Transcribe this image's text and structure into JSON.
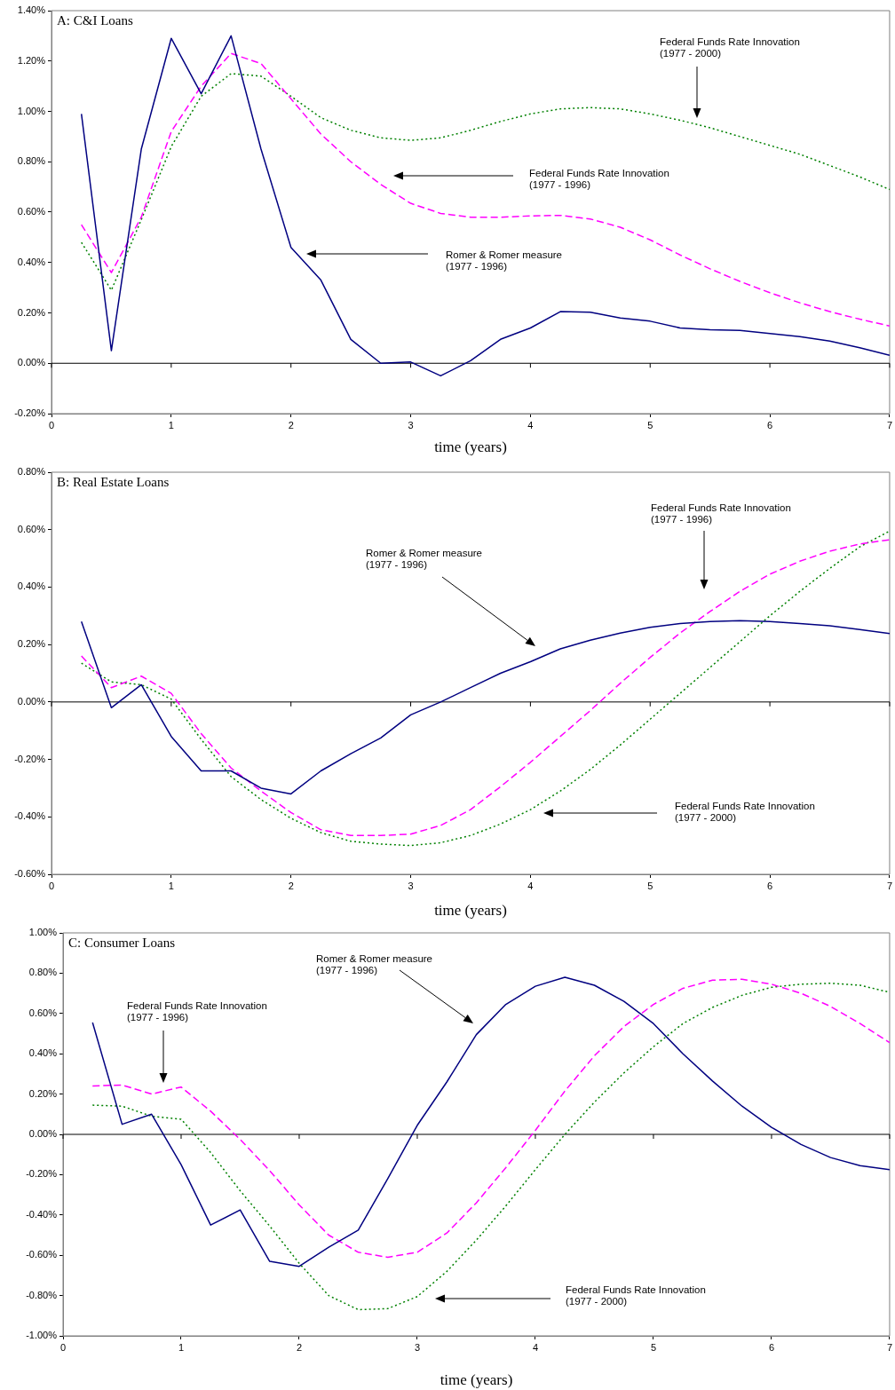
{
  "chart_data": [
    {
      "type": "line",
      "title": "A: C&I Loans",
      "xlabel": "time (years)",
      "marker": "none",
      "xlim": [
        0,
        7
      ],
      "xticks": [
        0,
        1,
        2,
        3,
        4,
        5,
        6,
        7
      ],
      "ylim": [
        -0.2,
        1.4
      ],
      "yticks": [
        {
          "value": -0.2,
          "label": "-0.20%"
        },
        {
          "value": 0,
          "label": "0.00%"
        },
        {
          "value": 0.2,
          "label": "0.20%"
        },
        {
          "value": 0.4,
          "label": "0.40%"
        },
        {
          "value": 0.6,
          "label": "0.60%"
        },
        {
          "value": 0.8,
          "label": "0.80%"
        },
        {
          "value": 1.0,
          "label": "1.00%"
        },
        {
          "value": 1.2,
          "label": "1.20%"
        },
        {
          "value": 1.4,
          "label": "1.40%"
        }
      ],
      "x": [
        0.25,
        0.5,
        0.75,
        1,
        1.25,
        1.5,
        1.75,
        2,
        2.25,
        2.5,
        2.75,
        3,
        3.25,
        3.5,
        3.75,
        4,
        4.25,
        4.5,
        4.75,
        5,
        5.25,
        5.5,
        5.75,
        6,
        6.25,
        6.5,
        6.75,
        7
      ],
      "series": [
        {
          "color": "#000080",
          "line_style": "solid",
          "values": [
            0.99,
            0.05,
            0.85,
            1.29,
            1.07,
            1.3,
            0.85,
            0.46,
            0.33,
            0.095,
            0.0,
            0.005,
            -0.05,
            0.01,
            0.095,
            0.14,
            0.205,
            0.203,
            0.18,
            0.167,
            0.14,
            0.133,
            0.13,
            0.118,
            0.106,
            0.088,
            0.062,
            0.032
          ]
        },
        {
          "color": "#ff00ff",
          "line_style": "dashed",
          "values": [
            0.55,
            0.36,
            0.58,
            0.92,
            1.1,
            1.23,
            1.19,
            1.05,
            0.91,
            0.8,
            0.71,
            0.635,
            0.595,
            0.58,
            0.58,
            0.585,
            0.587,
            0.573,
            0.54,
            0.49,
            0.43,
            0.375,
            0.325,
            0.28,
            0.24,
            0.205,
            0.175,
            0.148
          ]
        },
        {
          "color": "#008000",
          "line_style": "dotted",
          "values": [
            0.48,
            0.29,
            0.57,
            0.86,
            1.06,
            1.15,
            1.14,
            1.06,
            0.975,
            0.925,
            0.895,
            0.885,
            0.895,
            0.925,
            0.96,
            0.99,
            1.01,
            1.015,
            1.01,
            0.99,
            0.965,
            0.935,
            0.9,
            0.865,
            0.83,
            0.785,
            0.74,
            0.69
          ]
        }
      ],
      "ref_lines": [
        {
          "axis": "y",
          "value": 0,
          "color": "#000000"
        }
      ],
      "annotations": [
        "Federal Funds Rate Innovation\n(1977 - 2000)",
        "Federal Funds Rate Innovation\n(1977 - 1996)",
        "Romer & Romer measure\n(1977 - 1996)"
      ]
    },
    {
      "type": "line",
      "title": "B: Real Estate Loans",
      "xlabel": "time (years)",
      "marker": "none",
      "xlim": [
        0,
        7
      ],
      "xticks": [
        0,
        1,
        2,
        3,
        4,
        5,
        6,
        7
      ],
      "ylim": [
        -0.6,
        0.8
      ],
      "yticks": [
        {
          "value": -0.6,
          "label": "-0.60%"
        },
        {
          "value": -0.4,
          "label": "-0.40%"
        },
        {
          "value": -0.2,
          "label": "-0.20%"
        },
        {
          "value": 0,
          "label": "0.00%"
        },
        {
          "value": 0.2,
          "label": "0.20%"
        },
        {
          "value": 0.4,
          "label": "0.40%"
        },
        {
          "value": 0.6,
          "label": "0.60%"
        },
        {
          "value": 0.8,
          "label": "0.80%"
        }
      ],
      "x": [
        0.25,
        0.5,
        0.75,
        1,
        1.25,
        1.5,
        1.75,
        2,
        2.25,
        2.5,
        2.75,
        3,
        3.25,
        3.5,
        3.75,
        4,
        4.25,
        4.5,
        4.75,
        5,
        5.25,
        5.5,
        5.75,
        6,
        6.25,
        6.5,
        6.75,
        7
      ],
      "series": [
        {
          "color": "#000080",
          "line_style": "solid",
          "values": [
            0.28,
            -0.02,
            0.06,
            -0.12,
            -0.24,
            -0.24,
            -0.3,
            -0.32,
            -0.24,
            -0.18,
            -0.125,
            -0.045,
            0.0,
            0.05,
            0.1,
            0.14,
            0.185,
            0.215,
            0.24,
            0.26,
            0.273,
            0.28,
            0.283,
            0.28,
            0.273,
            0.265,
            0.252,
            0.238
          ]
        },
        {
          "color": "#ff00ff",
          "line_style": "dashed",
          "values": [
            0.16,
            0.05,
            0.09,
            0.03,
            -0.11,
            -0.23,
            -0.31,
            -0.385,
            -0.445,
            -0.465,
            -0.465,
            -0.46,
            -0.43,
            -0.375,
            -0.295,
            -0.21,
            -0.12,
            -0.03,
            0.065,
            0.155,
            0.24,
            0.315,
            0.385,
            0.445,
            0.49,
            0.525,
            0.55,
            0.565
          ]
        },
        {
          "color": "#008000",
          "line_style": "dotted",
          "values": [
            0.135,
            0.07,
            0.06,
            0.01,
            -0.13,
            -0.26,
            -0.34,
            -0.405,
            -0.455,
            -0.485,
            -0.495,
            -0.5,
            -0.49,
            -0.465,
            -0.425,
            -0.375,
            -0.31,
            -0.235,
            -0.15,
            -0.06,
            0.03,
            0.12,
            0.21,
            0.3,
            0.385,
            0.465,
            0.54,
            0.595
          ]
        }
      ],
      "ref_lines": [
        {
          "axis": "y",
          "value": 0,
          "color": "#000000"
        }
      ],
      "annotations": [
        "Federal Funds Rate Innovation\n(1977 - 1996)",
        "Romer & Romer measure\n(1977 - 1996)",
        "Federal Funds Rate Innovation\n(1977 - 2000)"
      ]
    },
    {
      "type": "line",
      "title": "C: Consumer Loans",
      "xlabel": "time (years)",
      "marker": "none",
      "xlim": [
        0,
        7
      ],
      "xticks": [
        0,
        1,
        2,
        3,
        4,
        5,
        6,
        7
      ],
      "ylim": [
        -1.0,
        1.0
      ],
      "yticks": [
        {
          "value": -1.0,
          "label": "-1.00%"
        },
        {
          "value": -0.8,
          "label": "-0.80%"
        },
        {
          "value": -0.6,
          "label": "-0.60%"
        },
        {
          "value": -0.4,
          "label": "-0.40%"
        },
        {
          "value": -0.2,
          "label": "-0.20%"
        },
        {
          "value": 0,
          "label": "0.00%"
        },
        {
          "value": 0.2,
          "label": "0.20%"
        },
        {
          "value": 0.4,
          "label": "0.40%"
        },
        {
          "value": 0.6,
          "label": "0.60%"
        },
        {
          "value": 0.8,
          "label": "0.80%"
        },
        {
          "value": 1.0,
          "label": "1.00%"
        }
      ],
      "x": [
        0.25,
        0.5,
        0.75,
        1,
        1.25,
        1.5,
        1.75,
        2,
        2.25,
        2.5,
        2.75,
        3,
        3.25,
        3.5,
        3.75,
        4,
        4.25,
        4.5,
        4.75,
        5,
        5.25,
        5.5,
        5.75,
        6,
        6.25,
        6.5,
        6.75,
        7
      ],
      "series": [
        {
          "color": "#000080",
          "line_style": "solid",
          "values": [
            0.555,
            0.05,
            0.1,
            -0.15,
            -0.45,
            -0.375,
            -0.63,
            -0.655,
            -0.56,
            -0.475,
            -0.22,
            0.045,
            0.26,
            0.495,
            0.645,
            0.735,
            0.78,
            0.74,
            0.66,
            0.55,
            0.4,
            0.265,
            0.14,
            0.035,
            -0.05,
            -0.115,
            -0.155,
            -0.175
          ]
        },
        {
          "color": "#ff00ff",
          "line_style": "dashed",
          "values": [
            0.24,
            0.245,
            0.2,
            0.235,
            0.115,
            -0.025,
            -0.18,
            -0.35,
            -0.5,
            -0.585,
            -0.61,
            -0.585,
            -0.49,
            -0.34,
            -0.165,
            0.02,
            0.215,
            0.39,
            0.535,
            0.645,
            0.725,
            0.765,
            0.77,
            0.745,
            0.7,
            0.635,
            0.55,
            0.455
          ]
        },
        {
          "color": "#008000",
          "line_style": "dotted",
          "values": [
            0.145,
            0.14,
            0.09,
            0.075,
            -0.09,
            -0.28,
            -0.455,
            -0.64,
            -0.8,
            -0.87,
            -0.865,
            -0.805,
            -0.68,
            -0.525,
            -0.355,
            -0.175,
            0.0,
            0.16,
            0.305,
            0.435,
            0.55,
            0.63,
            0.69,
            0.73,
            0.745,
            0.75,
            0.74,
            0.705
          ]
        }
      ],
      "ref_lines": [
        {
          "axis": "y",
          "value": 0,
          "color": "#000000"
        }
      ],
      "annotations": [
        "Romer & Romer measure\n(1977 - 1996)",
        "Federal Funds Rate Innovation\n(1977 - 1996)",
        "Federal Funds Rate Innovation\n(1977 - 2000)"
      ]
    }
  ]
}
